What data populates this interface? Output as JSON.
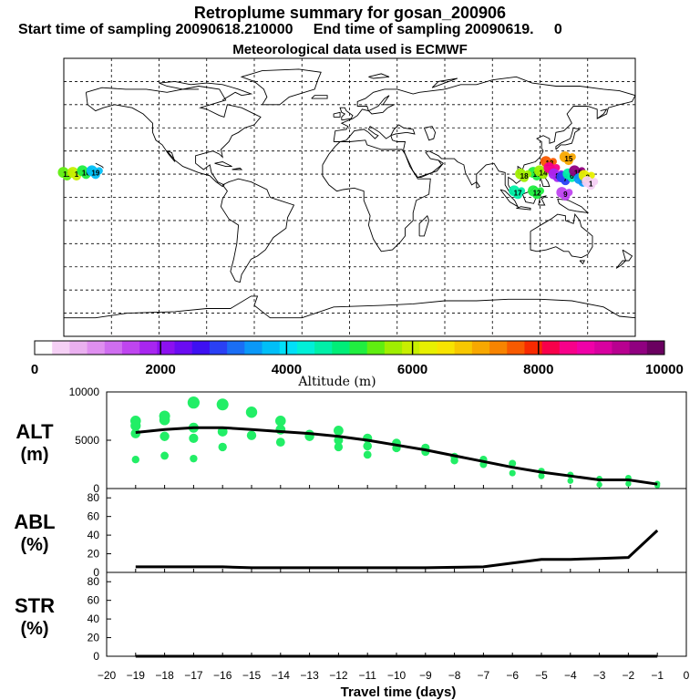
{
  "header": {
    "title": "Retroplume summary for gosan_200906",
    "subtitle": "Start time of sampling 20090618.210000     End time of sampling 20090619.     0",
    "met_line": "Meteorological data used is ECMWF"
  },
  "colorbar": {
    "label": "Altitude (m)",
    "ticks": [
      "0",
      "2000",
      "4000",
      "6000",
      "8000",
      "10000"
    ],
    "colors": [
      "#ffffff",
      "#f5d0f5",
      "#eab0f0",
      "#df8ff0",
      "#cf6ef0",
      "#bf45f0",
      "#a826f0",
      "#8c10f0",
      "#6a0cf2",
      "#3e10f2",
      "#2a40f5",
      "#1a6ef5",
      "#0a98f8",
      "#00bff8",
      "#00e0f8",
      "#00f0d8",
      "#00f0a8",
      "#00ee78",
      "#20ee40",
      "#60ee10",
      "#a0ee00",
      "#c8ef00",
      "#e8f000",
      "#f8e400",
      "#f8c800",
      "#f8a800",
      "#f88400",
      "#f85a00",
      "#f82a00",
      "#f8004a",
      "#f8008a",
      "#f000a8",
      "#d800a0",
      "#b80090",
      "#900080",
      "#6a0060"
    ]
  },
  "map": {
    "clusters": [
      {
        "lon": -178,
        "lat": 15,
        "alt": 5500,
        "label": "11"
      },
      {
        "lon": -172,
        "lat": 15,
        "alt": 6000,
        "label": "1"
      },
      {
        "lon": -166,
        "lat": 16,
        "alt": 5000,
        "label": "16"
      },
      {
        "lon": -160,
        "lat": 16,
        "alt": 3800,
        "label": "19"
      },
      {
        "lon": 118,
        "lat": 15,
        "alt": 5200,
        "label": "16"
      },
      {
        "lon": 122,
        "lat": 16,
        "alt": 5800,
        "label": "14"
      },
      {
        "lon": 126,
        "lat": 22,
        "alt": 7500,
        "label": "13"
      },
      {
        "lon": 128,
        "lat": 18,
        "alt": 8600,
        "label": ""
      },
      {
        "lon": 131,
        "lat": 14,
        "alt": 1800,
        "label": "8"
      },
      {
        "lon": 136,
        "lat": 12,
        "alt": 2800,
        "label": "7"
      },
      {
        "lon": 140,
        "lat": 14,
        "alt": 4500,
        "label": "6"
      },
      {
        "lon": 144,
        "lat": 16,
        "alt": 9500,
        "label": "15"
      },
      {
        "lon": 147,
        "lat": 11,
        "alt": 3500,
        "label": "5"
      },
      {
        "lon": 150,
        "lat": 13,
        "alt": 6200,
        "label": "3"
      },
      {
        "lon": 110,
        "lat": 14,
        "alt": 5600,
        "label": "18"
      },
      {
        "lon": 118,
        "lat": 3,
        "alt": 5100,
        "label": "12"
      },
      {
        "lon": 106,
        "lat": 3,
        "alt": 4600,
        "label": "17"
      },
      {
        "lon": 136,
        "lat": 2,
        "alt": 1600,
        "label": "9"
      },
      {
        "lon": 138,
        "lat": 25,
        "alt": 7000,
        "label": "15"
      },
      {
        "lon": 152,
        "lat": 9,
        "alt": 500,
        "label": "1"
      }
    ]
  },
  "chart_data": [
    {
      "type": "scatter",
      "name": "ALT",
      "ylabel": "ALT\n(m)",
      "ylabel_top": "ALT",
      "ylabel_bottom": "(m)",
      "ylim": [
        0,
        10000
      ],
      "yticks": [
        "10000",
        "5000",
        "0"
      ],
      "mean_line": {
        "x": [
          -19,
          -18,
          -17,
          -16,
          -15,
          -14,
          -13,
          -12,
          -11,
          -10,
          -9,
          -8,
          -7,
          -6,
          -5,
          -4,
          -3,
          -2,
          -1
        ],
        "y": [
          5800,
          6100,
          6300,
          6300,
          6100,
          5900,
          5700,
          5400,
          5000,
          4500,
          4000,
          3400,
          2800,
          2200,
          1700,
          1300,
          900,
          900,
          450
        ]
      },
      "points": [
        {
          "x": -19,
          "y": 7000
        },
        {
          "x": -19,
          "y": 6500
        },
        {
          "x": -19,
          "y": 5700
        },
        {
          "x": -19,
          "y": 3000
        },
        {
          "x": -18,
          "y": 7500
        },
        {
          "x": -18,
          "y": 7100
        },
        {
          "x": -18,
          "y": 5400
        },
        {
          "x": -18,
          "y": 3400
        },
        {
          "x": -17,
          "y": 8900
        },
        {
          "x": -17,
          "y": 6300
        },
        {
          "x": -17,
          "y": 5200
        },
        {
          "x": -17,
          "y": 3100
        },
        {
          "x": -16,
          "y": 8700
        },
        {
          "x": -16,
          "y": 5900
        },
        {
          "x": -16,
          "y": 4300
        },
        {
          "x": -15,
          "y": 7900
        },
        {
          "x": -15,
          "y": 5500
        },
        {
          "x": -14,
          "y": 7000
        },
        {
          "x": -14,
          "y": 6100
        },
        {
          "x": -14,
          "y": 4800
        },
        {
          "x": -13,
          "y": 5600
        },
        {
          "x": -13,
          "y": 5400
        },
        {
          "x": -12,
          "y": 6000
        },
        {
          "x": -12,
          "y": 5000
        },
        {
          "x": -12,
          "y": 4300
        },
        {
          "x": -11,
          "y": 5200
        },
        {
          "x": -11,
          "y": 4400
        },
        {
          "x": -11,
          "y": 3500
        },
        {
          "x": -10,
          "y": 4700
        },
        {
          "x": -10,
          "y": 4200
        },
        {
          "x": -9,
          "y": 4200
        },
        {
          "x": -9,
          "y": 3800
        },
        {
          "x": -8,
          "y": 3300
        },
        {
          "x": -8,
          "y": 2900
        },
        {
          "x": -7,
          "y": 3000
        },
        {
          "x": -7,
          "y": 2500
        },
        {
          "x": -6,
          "y": 2600
        },
        {
          "x": -6,
          "y": 1600
        },
        {
          "x": -5,
          "y": 1800
        },
        {
          "x": -5,
          "y": 1300
        },
        {
          "x": -4,
          "y": 1400
        },
        {
          "x": -4,
          "y": 800
        },
        {
          "x": -3,
          "y": 1000
        },
        {
          "x": -3,
          "y": 400
        },
        {
          "x": -2,
          "y": 1100
        },
        {
          "x": -2,
          "y": 500
        },
        {
          "x": -1,
          "y": 500
        },
        {
          "x": -1,
          "y": 300
        }
      ],
      "point_color": "#22ee66"
    },
    {
      "type": "line",
      "name": "ABL",
      "ylabel_top": "ABL",
      "ylabel_bottom": "(%)",
      "ylim": [
        0,
        90
      ],
      "yticks": [
        "80",
        "60",
        "40",
        "20",
        "0"
      ],
      "x": [
        -19,
        -18,
        -17,
        -16,
        -15,
        -14,
        -13,
        -12,
        -11,
        -10,
        -9,
        -8,
        -7,
        -6,
        -5,
        -4,
        -3,
        -2,
        -1
      ],
      "y": [
        6,
        6,
        6,
        6,
        5,
        5,
        5,
        5,
        5,
        5,
        5,
        5.5,
        6,
        10,
        14,
        14,
        15,
        16,
        45
      ]
    },
    {
      "type": "line",
      "name": "STR",
      "ylabel_top": "STR",
      "ylabel_bottom": "(%)",
      "ylim": [
        0,
        90
      ],
      "yticks": [
        "80",
        "60",
        "40",
        "20",
        "0"
      ],
      "x": [
        -19,
        -18,
        -17,
        -16,
        -15,
        -14,
        -13,
        -12,
        -11,
        -10,
        -9,
        -8,
        -7,
        -6,
        -5,
        -4,
        -3,
        -2,
        -1
      ],
      "y": [
        0,
        0,
        0,
        0,
        0,
        0,
        0,
        0,
        0,
        0,
        0,
        0,
        0,
        0,
        0,
        0,
        0,
        0,
        0
      ]
    }
  ],
  "xaxis": {
    "ticks": [
      "−20",
      "−19",
      "−18",
      "−17",
      "−16",
      "−15",
      "−14",
      "−13",
      "−12",
      "−11",
      "−10",
      "−9",
      "−8",
      "−7",
      "−6",
      "−5",
      "−4",
      "−3",
      "−2",
      "−1",
      "0"
    ],
    "label": "Travel time (days)"
  }
}
